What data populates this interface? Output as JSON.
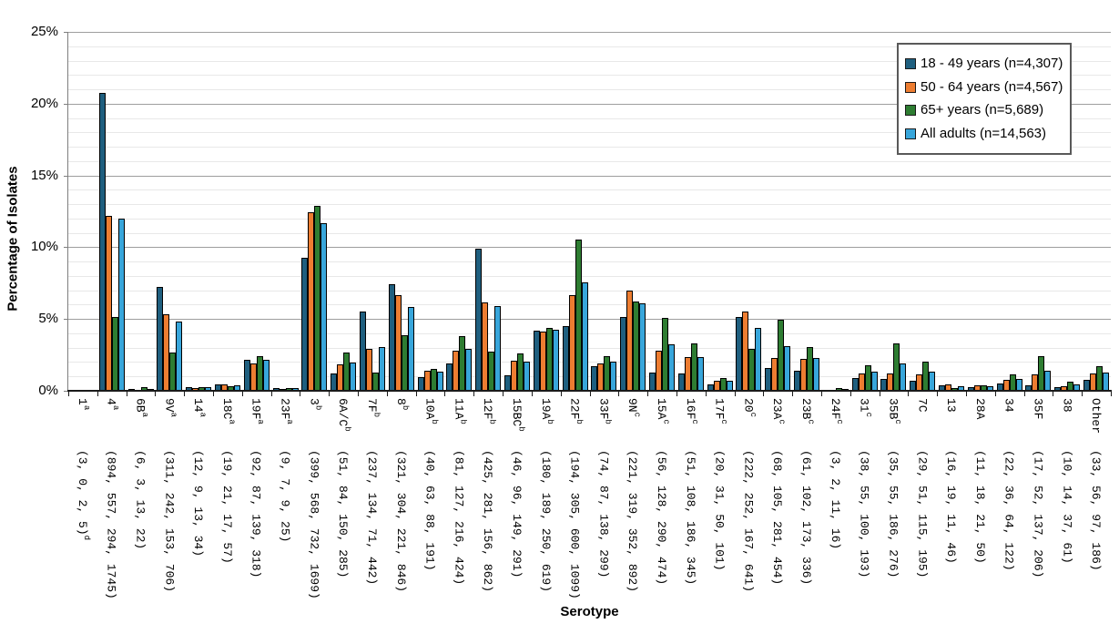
{
  "chart_data": {
    "type": "bar",
    "title": "",
    "xlabel": "Serotype",
    "ylabel": "Percentage of Isolates",
    "ylim": [
      0,
      25
    ],
    "y_major_tick_pct": 5,
    "y_minor_tick_pct": 1,
    "y_tick_labels": [
      "0%",
      "5%",
      "10%",
      "15%",
      "20%",
      "25%"
    ],
    "grid": "horizontal major+minor",
    "legend_position": "top-right",
    "series": [
      {
        "name": "18 - 49 years (n=4,307)",
        "n": 4307,
        "color": "#1f5f7f",
        "values_pct": [
          0.07,
          20.76,
          0.14,
          7.22,
          0.28,
          0.44,
          2.14,
          0.21,
          9.26,
          1.18,
          5.5,
          7.45,
          0.93,
          1.88,
          9.87,
          1.07,
          4.18,
          4.5,
          1.72,
          5.13,
          1.3,
          1.18,
          0.46,
          5.15,
          1.58,
          1.42,
          0.07,
          0.88,
          0.81,
          0.67,
          0.37,
          0.26,
          0.51,
          0.39,
          0.23,
          0.77
        ]
      },
      {
        "name": "50 - 64 years (n=4,567)",
        "n": 4567,
        "color": "#ed7d31",
        "values_pct": [
          0.0,
          12.2,
          0.07,
          5.3,
          0.2,
          0.46,
          1.9,
          0.15,
          12.44,
          1.84,
          2.93,
          6.66,
          1.38,
          2.78,
          6.15,
          2.1,
          4.14,
          6.68,
          1.9,
          6.99,
          2.8,
          2.36,
          0.68,
          5.52,
          2.3,
          2.23,
          0.04,
          1.2,
          1.2,
          1.12,
          0.42,
          0.39,
          0.79,
          1.14,
          0.31,
          1.23
        ]
      },
      {
        "name": "65+ years (n=5,689)",
        "n": 5689,
        "color": "#2e7d32",
        "values_pct": [
          0.04,
          5.17,
          0.23,
          2.69,
          0.23,
          0.3,
          2.44,
          0.16,
          12.87,
          2.64,
          1.25,
          3.88,
          1.55,
          3.8,
          2.74,
          2.62,
          4.39,
          10.55,
          2.43,
          6.19,
          5.1,
          3.27,
          0.88,
          2.94,
          4.94,
          3.04,
          0.19,
          1.76,
          3.27,
          2.02,
          0.19,
          0.37,
          1.13,
          2.41,
          0.65,
          1.71
        ]
      },
      {
        "name": "All adults (n=14,563)",
        "n": 14563,
        "color": "#38a6db",
        "values_pct": [
          0.03,
          11.98,
          0.15,
          4.85,
          0.23,
          0.39,
          2.18,
          0.17,
          11.67,
          1.96,
          3.04,
          5.81,
          1.31,
          2.91,
          5.92,
          2.0,
          4.25,
          7.55,
          2.05,
          6.12,
          3.25,
          2.37,
          0.69,
          4.4,
          3.12,
          2.31,
          0.11,
          1.33,
          1.9,
          1.34,
          0.32,
          0.34,
          0.84,
          1.41,
          0.42,
          1.28
        ]
      }
    ],
    "categories": [
      {
        "serotype": "1",
        "sup": "a",
        "counts": [
          3,
          0,
          2,
          5
        ],
        "counts_sup": "d"
      },
      {
        "serotype": "4",
        "sup": "a",
        "counts": [
          894,
          557,
          294,
          1745
        ],
        "counts_sup": ""
      },
      {
        "serotype": "6B",
        "sup": "a",
        "counts": [
          6,
          3,
          13,
          22
        ],
        "counts_sup": ""
      },
      {
        "serotype": "9V",
        "sup": "a",
        "counts": [
          311,
          242,
          153,
          706
        ],
        "counts_sup": ""
      },
      {
        "serotype": "14",
        "sup": "a",
        "counts": [
          12,
          9,
          13,
          34
        ],
        "counts_sup": ""
      },
      {
        "serotype": "18C",
        "sup": "a",
        "counts": [
          19,
          21,
          17,
          57
        ],
        "counts_sup": ""
      },
      {
        "serotype": "19F",
        "sup": "a",
        "counts": [
          92,
          87,
          139,
          318
        ],
        "counts_sup": ""
      },
      {
        "serotype": "23F",
        "sup": "a",
        "counts": [
          9,
          7,
          9,
          25
        ],
        "counts_sup": ""
      },
      {
        "serotype": "3",
        "sup": "b",
        "counts": [
          399,
          568,
          732,
          1699
        ],
        "counts_sup": ""
      },
      {
        "serotype": "6A/C",
        "sup": "b",
        "counts": [
          51,
          84,
          150,
          285
        ],
        "counts_sup": ""
      },
      {
        "serotype": "7F",
        "sup": "b",
        "counts": [
          237,
          134,
          71,
          442
        ],
        "counts_sup": ""
      },
      {
        "serotype": "8",
        "sup": "b",
        "counts": [
          321,
          304,
          221,
          846
        ],
        "counts_sup": ""
      },
      {
        "serotype": "10A",
        "sup": "b",
        "counts": [
          40,
          63,
          88,
          191
        ],
        "counts_sup": ""
      },
      {
        "serotype": "11A",
        "sup": "b",
        "counts": [
          81,
          127,
          216,
          424
        ],
        "counts_sup": ""
      },
      {
        "serotype": "12F",
        "sup": "b",
        "counts": [
          425,
          281,
          156,
          862
        ],
        "counts_sup": ""
      },
      {
        "serotype": "15BC",
        "sup": "b",
        "counts": [
          46,
          96,
          149,
          291
        ],
        "counts_sup": ""
      },
      {
        "serotype": "19A",
        "sup": "b",
        "counts": [
          180,
          189,
          250,
          619
        ],
        "counts_sup": ""
      },
      {
        "serotype": "22F",
        "sup": "b",
        "counts": [
          194,
          305,
          600,
          1099
        ],
        "counts_sup": ""
      },
      {
        "serotype": "33F",
        "sup": "b",
        "counts": [
          74,
          87,
          138,
          299
        ],
        "counts_sup": ""
      },
      {
        "serotype": "9N",
        "sup": "c",
        "counts": [
          221,
          319,
          352,
          892
        ],
        "counts_sup": ""
      },
      {
        "serotype": "15A",
        "sup": "c",
        "counts": [
          56,
          128,
          290,
          474
        ],
        "counts_sup": ""
      },
      {
        "serotype": "16F",
        "sup": "c",
        "counts": [
          51,
          108,
          186,
          345
        ],
        "counts_sup": ""
      },
      {
        "serotype": "17F",
        "sup": "c",
        "counts": [
          20,
          31,
          50,
          101
        ],
        "counts_sup": ""
      },
      {
        "serotype": "20",
        "sup": "c",
        "counts": [
          222,
          252,
          167,
          641
        ],
        "counts_sup": ""
      },
      {
        "serotype": "23A",
        "sup": "c",
        "counts": [
          68,
          105,
          281,
          454
        ],
        "counts_sup": ""
      },
      {
        "serotype": "23B",
        "sup": "c",
        "counts": [
          61,
          102,
          173,
          336
        ],
        "counts_sup": ""
      },
      {
        "serotype": "24F",
        "sup": "c",
        "counts": [
          3,
          2,
          11,
          16
        ],
        "counts_sup": ""
      },
      {
        "serotype": "31",
        "sup": "c",
        "counts": [
          38,
          55,
          100,
          193
        ],
        "counts_sup": ""
      },
      {
        "serotype": "35B",
        "sup": "c",
        "counts": [
          35,
          55,
          186,
          276
        ],
        "counts_sup": ""
      },
      {
        "serotype": "7C",
        "sup": "",
        "counts": [
          29,
          51,
          115,
          195
        ],
        "counts_sup": ""
      },
      {
        "serotype": "13",
        "sup": "",
        "counts": [
          16,
          19,
          11,
          46
        ],
        "counts_sup": ""
      },
      {
        "serotype": "28A",
        "sup": "",
        "counts": [
          11,
          18,
          21,
          50
        ],
        "counts_sup": ""
      },
      {
        "serotype": "34",
        "sup": "",
        "counts": [
          22,
          36,
          64,
          122
        ],
        "counts_sup": ""
      },
      {
        "serotype": "35F",
        "sup": "",
        "counts": [
          17,
          52,
          137,
          206
        ],
        "counts_sup": ""
      },
      {
        "serotype": "38",
        "sup": "",
        "counts": [
          10,
          14,
          37,
          61
        ],
        "counts_sup": ""
      },
      {
        "serotype": "Other",
        "sup": "",
        "counts": [
          33,
          56,
          97,
          186
        ],
        "counts_sup": ""
      }
    ]
  }
}
